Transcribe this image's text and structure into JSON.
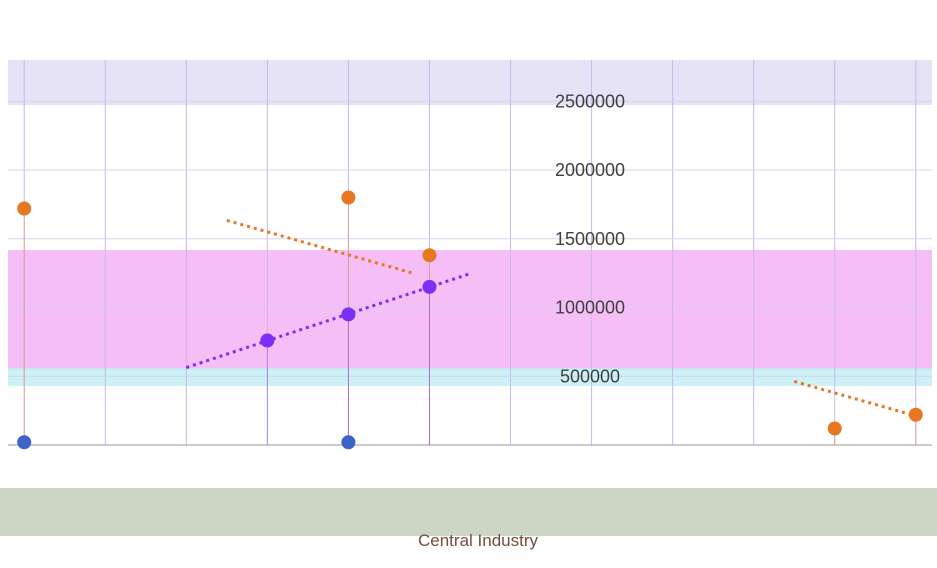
{
  "chart_data": {
    "type": "scatter",
    "title": "",
    "xlabel": "Central Industry",
    "ylabel": "",
    "ylim": [
      0,
      2800000
    ],
    "yticks": [
      500000,
      1000000,
      1500000,
      2000000,
      2500000
    ],
    "grid": true,
    "legend": "none",
    "series": [
      {
        "color": "#e87722",
        "trendline": "dotted",
        "points": [
          {
            "x": 1,
            "y": 1720000
          },
          {
            "x": 5,
            "y": 1800000
          },
          {
            "x": 6,
            "y": 1380000
          },
          {
            "x": 11,
            "y": 120000
          },
          {
            "x": 12,
            "y": 220000
          }
        ]
      },
      {
        "color": "#7b2ff7",
        "trendline": "dotted",
        "points": [
          {
            "x": 4,
            "y": 760000
          },
          {
            "x": 5,
            "y": 950000
          },
          {
            "x": 6,
            "y": 1150000
          }
        ]
      },
      {
        "color": "#3d63c9",
        "trendline": "none",
        "points": [
          {
            "x": 1,
            "y": 20000
          },
          {
            "x": 5,
            "y": 20000
          }
        ]
      }
    ]
  }
}
